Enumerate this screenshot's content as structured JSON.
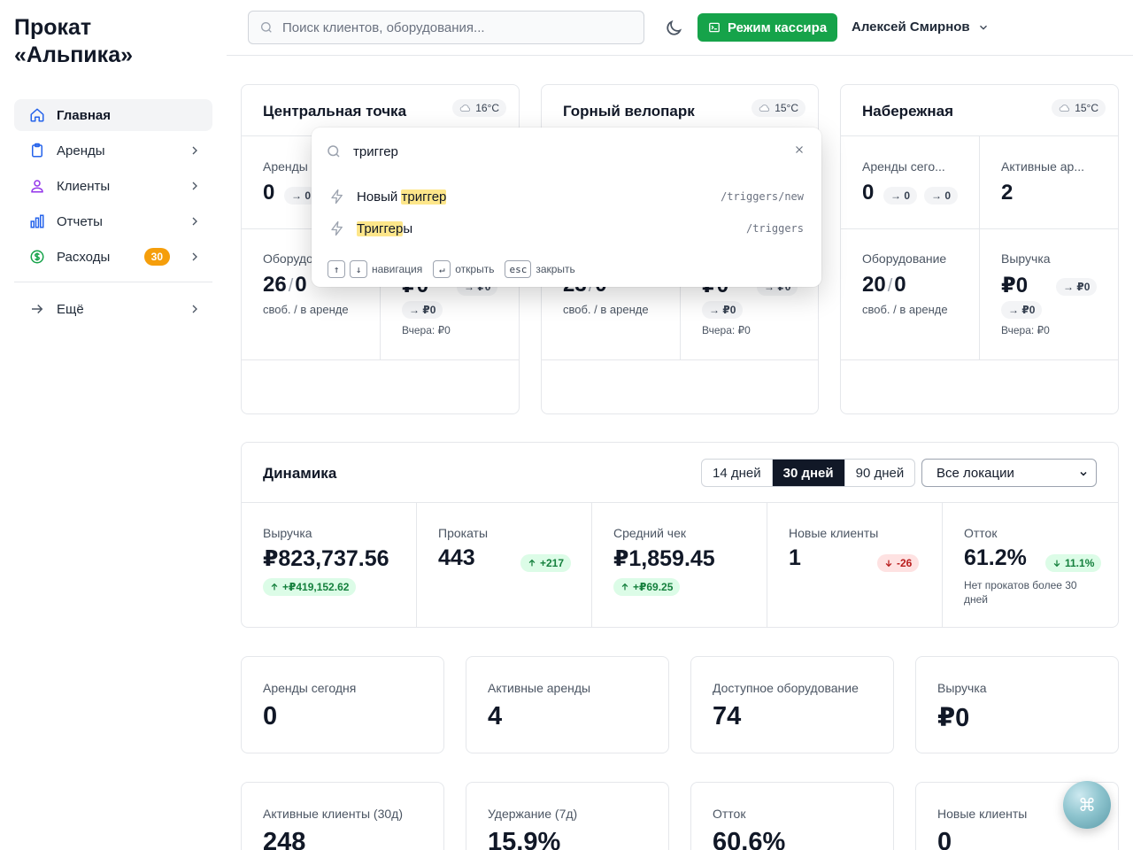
{
  "brand": {
    "line1": "Прокат",
    "line2": "«Альпика»"
  },
  "sidebar": {
    "items": [
      {
        "label": "Главная",
        "icon": "home-icon",
        "active": true
      },
      {
        "label": "Аренды",
        "icon": "clipboard-icon"
      },
      {
        "label": "Клиенты",
        "icon": "users-icon"
      },
      {
        "label": "Отчеты",
        "icon": "bar-chart-icon"
      },
      {
        "label": "Расходы",
        "icon": "dollar-icon",
        "badge": "30"
      }
    ],
    "more": {
      "label": "Ещё",
      "icon": "arrow-right-icon"
    }
  },
  "header": {
    "search_placeholder": "Поиск клиентов, оборудования...",
    "cashier_label": "Режим кассира",
    "user_name": "Алексей Смирнов"
  },
  "locations": [
    {
      "title": "Центральная точка",
      "temp": "16°C",
      "rent_label": "Аренды",
      "rent_value": "0",
      "rent_d1": "0",
      "equip_label": "Оборудо",
      "equip_free": "26",
      "equip_rent": "0",
      "equip_sub": "своб. / в аренде",
      "rev_value": "₽0",
      "rev_d1": "₽0",
      "rev_d2": "₽0",
      "rev_yest": "Вчера: ₽0"
    },
    {
      "title": "Горный велопарк",
      "temp": "15°C",
      "equip_free": "23",
      "equip_rent": "0",
      "equip_sub": "своб. / в аренде",
      "rev_value": "₽0",
      "rev_d1": "₽0",
      "rev_d2": "₽0",
      "rev_yest": "Вчера: ₽0"
    },
    {
      "title": "Набережная",
      "temp": "15°C",
      "rent_label": "Аренды сего...",
      "rent_value": "0",
      "rent_d1": "0",
      "rent_d2": "0",
      "active_label": "Активные ар...",
      "active_value": "2",
      "equip_label": "Оборудование",
      "equip_free": "20",
      "equip_rent": "0",
      "equip_sub": "своб. / в аренде",
      "rev_label": "Выручка",
      "rev_value": "₽0",
      "rev_d1": "₽0",
      "rev_d2": "₽0",
      "rev_yest": "Вчера: ₽0"
    }
  ],
  "palette": {
    "query": "триггер",
    "items": [
      {
        "prefix": "Новый ",
        "match": "триггер",
        "suffix": "",
        "path": "/triggers/new",
        "icon": "bolt-icon"
      },
      {
        "prefix": "",
        "match": "Триггер",
        "suffix": "ы",
        "path": "/triggers",
        "icon": "bolt-icon"
      }
    ],
    "footer": {
      "up_key": "↑",
      "down_key": "↓",
      "nav_label": "навигация",
      "enter_key": "↵",
      "open_label": "открыть",
      "esc_key": "esc",
      "close_label": "закрыть"
    }
  },
  "dynamics": {
    "title": "Динамика",
    "ranges": [
      "14 дней",
      "30 дней",
      "90 дней"
    ],
    "selected_range": "30 дней",
    "location_select": "Все локации",
    "metrics": [
      {
        "label": "Выручка",
        "value": "₽823,737.56",
        "delta": "+₽419,152.62",
        "trend": "up"
      },
      {
        "label": "Прокаты",
        "value": "443",
        "delta": "+217",
        "trend": "up"
      },
      {
        "label": "Средний чек",
        "value": "₽1,859.45",
        "delta": "+₽69.25",
        "trend": "up"
      },
      {
        "label": "Новые клиенты",
        "value": "1",
        "delta": "-26",
        "trend": "down"
      },
      {
        "label": "Отток",
        "value": "61.2%",
        "delta": "11.1%",
        "trend": "down-good",
        "note": "Нет прокатов более 30 дней"
      }
    ]
  },
  "kpis": [
    {
      "label": "Аренды сегодня",
      "value": "0"
    },
    {
      "label": "Активные аренды",
      "value": "4"
    },
    {
      "label": "Доступное оборудование",
      "value": "74"
    },
    {
      "label": "Выручка",
      "value": "₽0"
    },
    {
      "label": "Активные клиенты (30д)",
      "value": "248"
    },
    {
      "label": "Удержание (7д)",
      "value": "15.9%"
    },
    {
      "label": "Отток",
      "value": "60.6%"
    },
    {
      "label": "Новые клиенты",
      "value": "0"
    }
  ],
  "fab": {
    "icon": "command-icon",
    "glyph": "⌘"
  },
  "colors": {
    "accent_green": "#16a34a",
    "badge_orange": "#f59e0b",
    "highlight": "#fde68a"
  }
}
